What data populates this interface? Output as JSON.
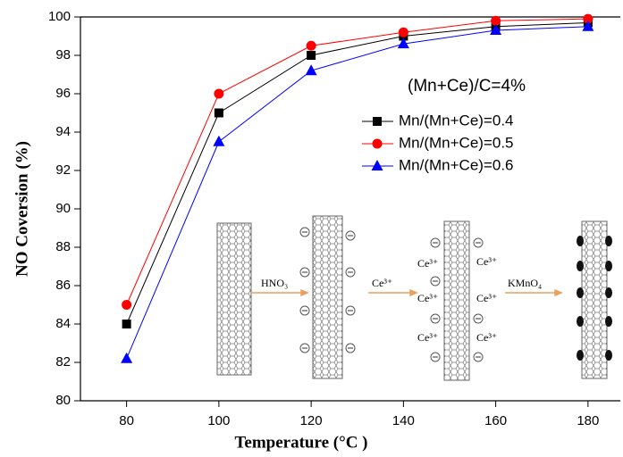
{
  "chart_data": {
    "type": "line",
    "xlabel": "Temperature (°C )",
    "ylabel": "NO Coversion (%)",
    "annotation": "(Mn+Ce)/C=4%",
    "x": [
      80,
      100,
      120,
      140,
      160,
      180
    ],
    "series": [
      {
        "name": "Mn/(Mn+Ce)=0.4",
        "color": "#000000",
        "marker": "square",
        "values": [
          84,
          95,
          98,
          99,
          99.5,
          99.7
        ]
      },
      {
        "name": "Mn/(Mn+Ce)=0.5",
        "color": "#ff0000",
        "marker": "circle",
        "values": [
          85,
          96,
          98.5,
          99.2,
          99.8,
          99.9
        ]
      },
      {
        "name": "Mn/(Mn+Ce)=0.6",
        "color": "#0000ff",
        "marker": "triangle",
        "values": [
          82.2,
          93.5,
          97.2,
          98.6,
          99.3,
          99.5
        ]
      }
    ],
    "xlim": [
      70,
      187
    ],
    "xticks": [
      80,
      100,
      120,
      140,
      160,
      180
    ],
    "ylim": [
      80,
      100
    ],
    "yticks": [
      80,
      82,
      84,
      86,
      88,
      90,
      92,
      94,
      96,
      98,
      100
    ],
    "inset": {
      "steps": [
        "HNO₃",
        "Ce³⁺",
        "KMnO₄"
      ],
      "ion_labels": [
        "Ce³⁺",
        "Ce³⁺",
        "Ce³⁺",
        "Ce³⁺",
        "Ce³⁺",
        "Ce³⁺"
      ]
    }
  }
}
